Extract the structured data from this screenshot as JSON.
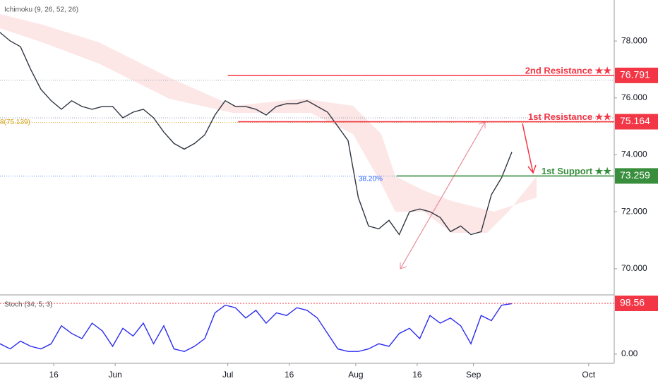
{
  "chart_data": [
    {
      "type": "line",
      "title": "Ichimoku (9, 26, 52, 26)",
      "color": "#2f3640",
      "xlim": [
        0,
        120
      ],
      "xticks": [
        {
          "value": 10.5,
          "label": "16"
        },
        {
          "value": 22.5,
          "label": "Jun"
        },
        {
          "value": 44.5,
          "label": "Jul"
        },
        {
          "value": 56.5,
          "label": "16"
        },
        {
          "value": 69.5,
          "label": "Aug"
        },
        {
          "value": 81.5,
          "label": "16"
        },
        {
          "value": 92.5,
          "label": "Sep"
        },
        {
          "value": 115,
          "label": "Oct"
        }
      ],
      "ylim": [
        69.08,
        79.44
      ],
      "yticks": [
        {
          "value": 70,
          "label": "70.000"
        },
        {
          "value": 72,
          "label": "72.000"
        },
        {
          "value": 74,
          "label": "74.000"
        },
        {
          "value": 76,
          "label": "76.000"
        },
        {
          "value": 78,
          "label": "78.000"
        }
      ],
      "x": [
        0,
        2,
        4,
        6,
        8,
        10,
        12,
        14,
        16,
        18,
        20,
        22,
        24,
        26,
        28,
        30,
        32,
        34,
        36,
        38,
        40,
        42,
        44,
        46,
        48,
        50,
        52,
        54,
        56,
        58,
        60,
        62,
        64,
        66,
        68,
        70,
        72,
        74,
        76,
        78,
        80,
        82,
        84,
        86,
        88,
        90,
        92,
        94,
        96,
        98,
        100
      ],
      "values": [
        78.3,
        78.0,
        77.8,
        77.0,
        76.3,
        75.9,
        75.6,
        75.9,
        75.7,
        75.6,
        75.7,
        75.7,
        75.3,
        75.5,
        75.6,
        75.3,
        74.8,
        74.4,
        74.2,
        74.4,
        74.7,
        75.4,
        75.9,
        75.7,
        75.7,
        75.6,
        75.4,
        75.7,
        75.8,
        75.8,
        75.9,
        75.7,
        75.5,
        75.0,
        74.5,
        72.5,
        71.5,
        71.4,
        71.7,
        71.2,
        72.0,
        72.1,
        72.0,
        71.8,
        71.3,
        71.5,
        71.2,
        71.3,
        72.6,
        73.2,
        74.1
      ],
      "levels": [
        {
          "label": "2nd Resistance ★★",
          "value": 76.791,
          "color": "#f23645",
          "from": 44.5
        },
        {
          "label": "1st Resistance ★★",
          "value": 75.164,
          "color": "#f23645",
          "from": 46.5
        },
        {
          "label": "1st Support ★★",
          "value": 73.259,
          "color": "#388e3c",
          "from": 77.5
        }
      ],
      "fib_levels": [
        {
          "value": 76.62,
          "color": "#7e8ca8"
        },
        {
          "value": 75.3,
          "color": "#7e8ca8"
        },
        {
          "label": "8(75.139)",
          "value": 75.139,
          "color": "#d4a017"
        },
        {
          "label": "38.20%",
          "value": 73.25,
          "color": "#2962ff"
        }
      ]
    },
    {
      "type": "line",
      "title": "Stoch (34, 5, 3)",
      "color": "#2b2bf0",
      "ylim": [
        -18,
        115
      ],
      "yticks": [
        {
          "value": 0,
          "label": "0.00"
        }
      ],
      "values": [
        20,
        10,
        25,
        15,
        10,
        20,
        55,
        40,
        30,
        60,
        45,
        15,
        50,
        35,
        60,
        20,
        55,
        10,
        5,
        15,
        30,
        80,
        95,
        90,
        70,
        85,
        60,
        80,
        75,
        90,
        85,
        70,
        40,
        10,
        5,
        5,
        10,
        20,
        15,
        40,
        50,
        30,
        75,
        60,
        70,
        55,
        20,
        75,
        65,
        95,
        98
      ],
      "levels": [
        {
          "value": 98.56,
          "color": "#f23645"
        }
      ]
    }
  ]
}
